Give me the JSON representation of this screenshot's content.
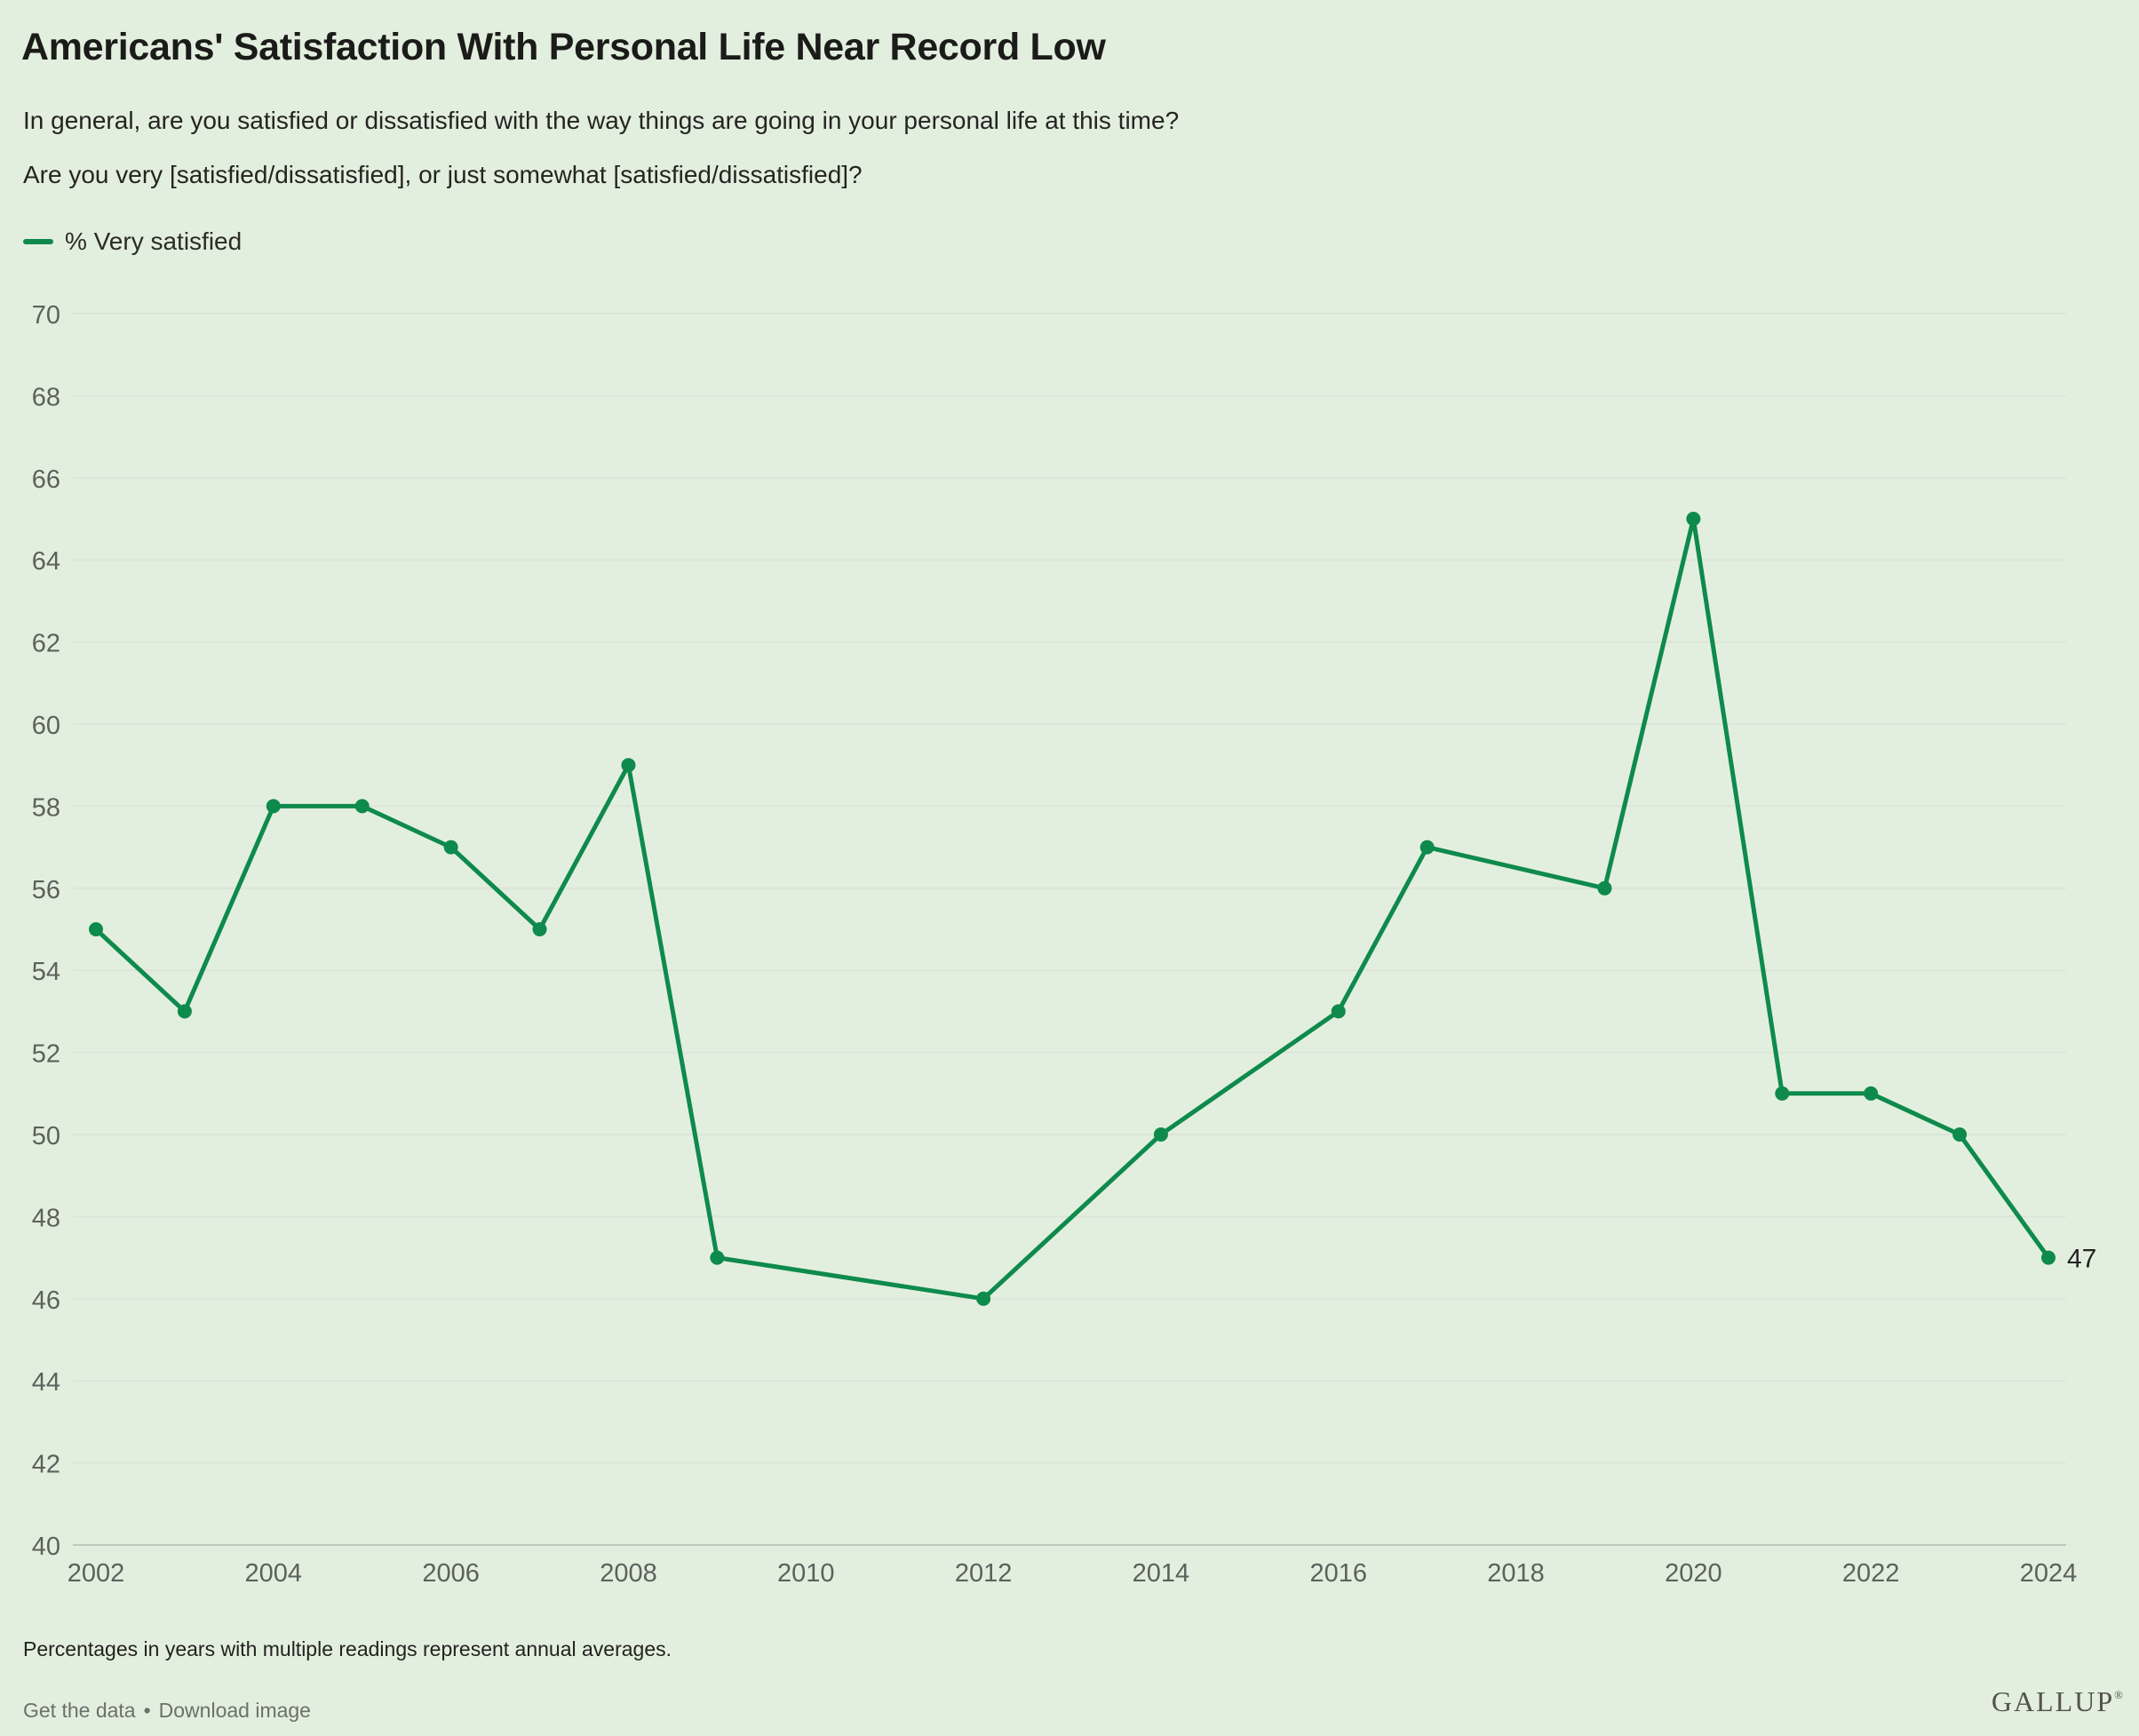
{
  "page": {
    "background": "#E3EFDE",
    "title": "Americans' Satisfaction With Personal Life Near Record Low",
    "subtitle_line1": "In general, are you satisfied or dissatisfied with the way things are going in your personal life at this time?",
    "subtitle_line2": "Are you very [satisfied/dissatisfied], or just somewhat [satisfied/dissatisfied]?",
    "footnote": "Percentages in years with multiple readings represent annual averages.",
    "links": {
      "get_data": "Get the data",
      "separator": "•",
      "download": "Download image"
    },
    "brand": {
      "logo": "GALLUP",
      "registered": "®"
    }
  },
  "legend": {
    "label": "% Very satisfied",
    "color": "#0E8A4D"
  },
  "chart_data": {
    "type": "line",
    "title": "Americans' Satisfaction With Personal Life Near Record Low",
    "xlabel": "",
    "ylabel": "% Very satisfied",
    "xlim": [
      2002,
      2024
    ],
    "ylim": [
      40,
      70
    ],
    "ytick_step": 2,
    "xticks": [
      2002,
      2004,
      2006,
      2008,
      2010,
      2012,
      2014,
      2016,
      2018,
      2020,
      2022,
      2024
    ],
    "grid": "horizontal",
    "legend_position": "top-left",
    "end_label": "47",
    "series": [
      {
        "name": "% Very satisfied",
        "color": "#0E8A4D",
        "points": [
          {
            "year": 2002,
            "value": 55
          },
          {
            "year": 2003,
            "value": 53
          },
          {
            "year": 2004,
            "value": 58
          },
          {
            "year": 2005,
            "value": 58
          },
          {
            "year": 2006,
            "value": 57
          },
          {
            "year": 2007,
            "value": 55
          },
          {
            "year": 2008,
            "value": 59
          },
          {
            "year": 2009,
            "value": 47
          },
          {
            "year": 2012,
            "value": 46
          },
          {
            "year": 2014,
            "value": 50
          },
          {
            "year": 2016,
            "value": 53
          },
          {
            "year": 2017,
            "value": 57
          },
          {
            "year": 2019,
            "value": 56
          },
          {
            "year": 2020,
            "value": 65
          },
          {
            "year": 2021,
            "value": 51
          },
          {
            "year": 2022,
            "value": 51
          },
          {
            "year": 2023,
            "value": 50
          },
          {
            "year": 2024,
            "value": 47
          }
        ]
      }
    ],
    "style": {
      "grid_color": "#DEE4D9",
      "axis_color": "#C1C7BD",
      "tick_color": "#5C615D",
      "end_label_color": "#232323"
    }
  }
}
